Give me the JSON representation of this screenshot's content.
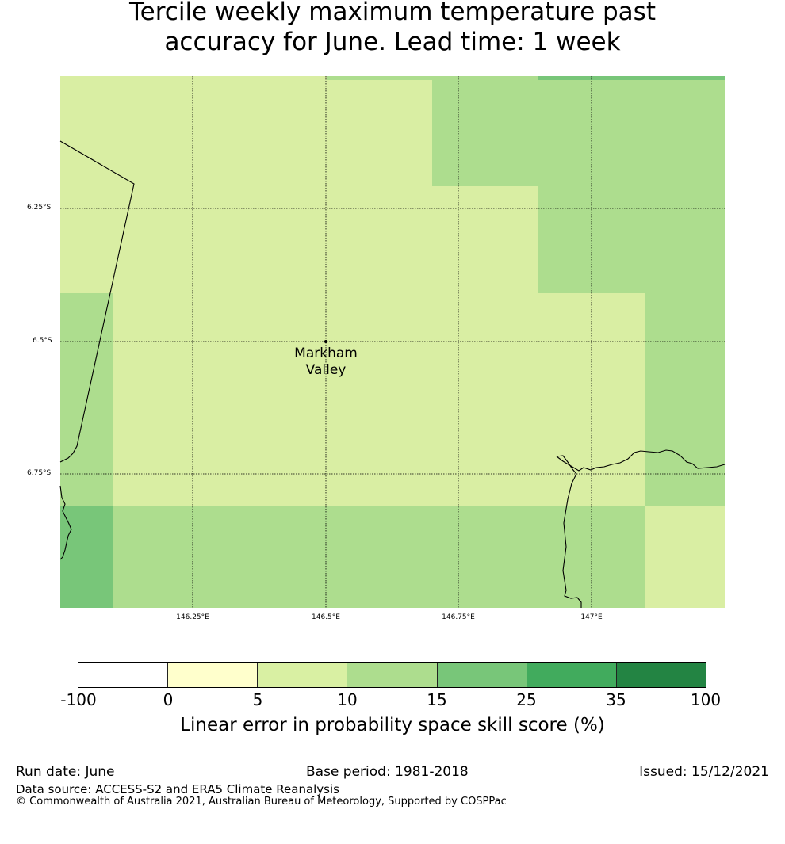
{
  "title_line1": "Tercile weekly maximum temperature past",
  "title_line2": "accuracy for June. Lead time: 1 week",
  "map": {
    "lat_labels": [
      "6.25°S",
      "6.5°S",
      "6.75°S"
    ],
    "lon_labels": [
      "146.25°E",
      "146.5°E",
      "146.75°E",
      "147°E"
    ],
    "place": {
      "name_line1": "Markham",
      "name_line2": "Valley",
      "lon": 146.5,
      "lat": -6.5
    },
    "extent": {
      "lon_min": 146.0,
      "lon_max": 147.25,
      "lat_min": -7.0,
      "lat_max": -6.0
    },
    "skill_class_colors": {
      "5-10": "#d9eea3",
      "10-15": "#addd8e",
      "15-25": "#78c679"
    }
  },
  "colorbar": {
    "ticks": [
      "-100",
      "0",
      "5",
      "10",
      "15",
      "25",
      "35",
      "100"
    ],
    "colors": [
      "#ffffff",
      "#ffffcc",
      "#d9f0a3",
      "#addd8e",
      "#78c679",
      "#41ab5d",
      "#238443"
    ],
    "label": "Linear error in probability space skill score (%)"
  },
  "footer": {
    "run_date": "Run date: June",
    "base_period": "Base period: 1981-2018",
    "issued": "Issued: 15/12/2021",
    "data_source": "Data source: ACCESS-S2 and ERA5 Climate Reanalysis",
    "copyright": "© Commonwealth of Australia 2021, Australian Bureau of Meteorology, Supported by COSPPac"
  }
}
